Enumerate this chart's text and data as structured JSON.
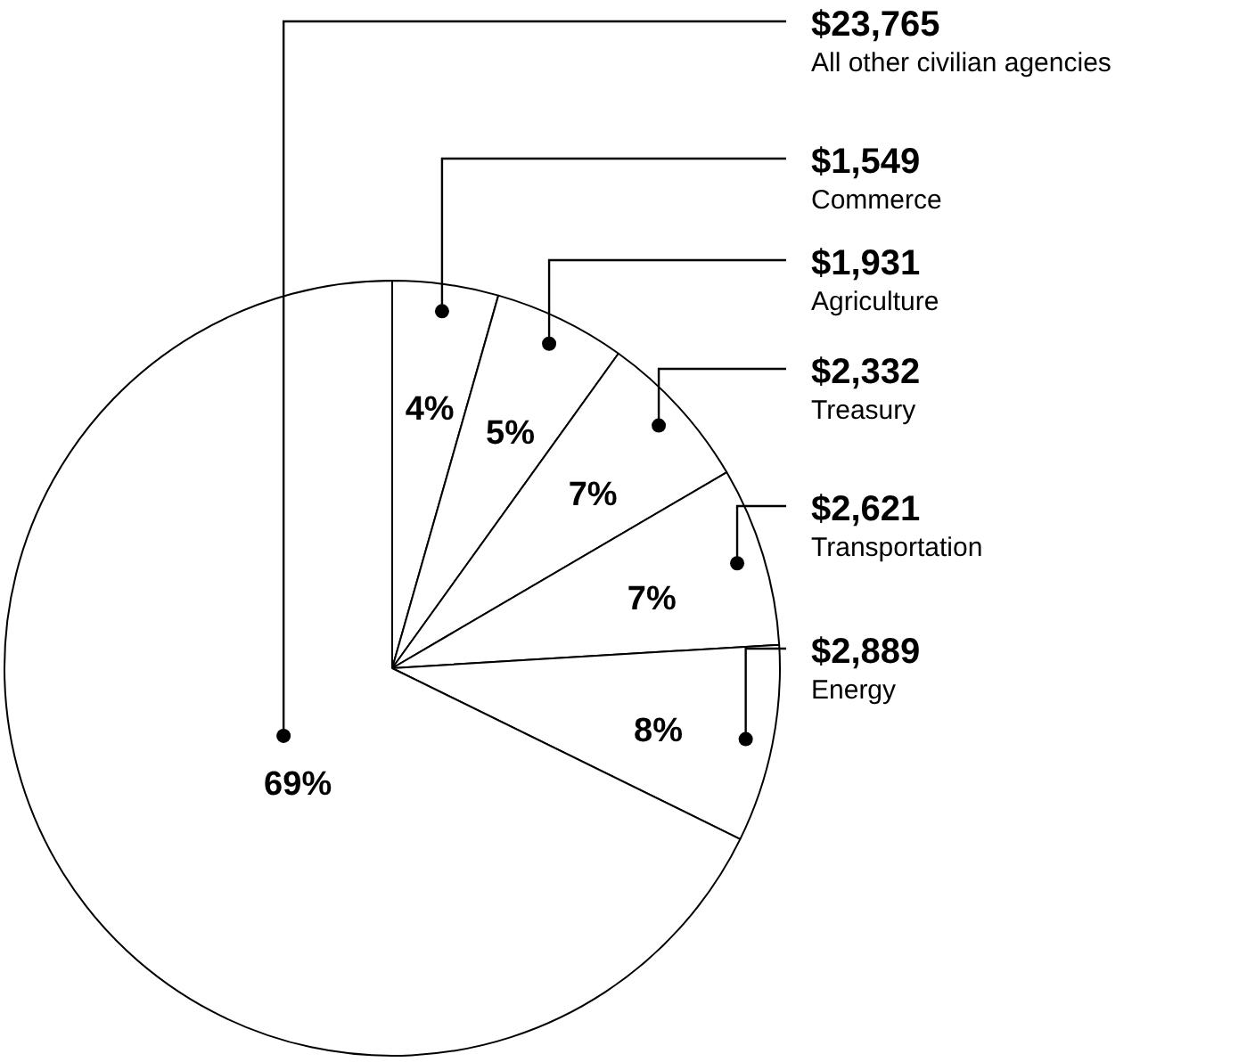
{
  "chart_data": {
    "type": "pie",
    "categories": [
      "Commerce",
      "Agriculture",
      "Treasury",
      "Transportation",
      "Energy",
      "All other civilian agencies"
    ],
    "values": [
      1549,
      1931,
      2332,
      2621,
      2889,
      23765
    ],
    "value_labels": [
      "$1,549",
      "$1,931",
      "$2,332",
      "$2,621",
      "$2,889",
      "$23,765"
    ],
    "colors": [
      "#ffffff",
      "#ffffff",
      "#ffffff",
      "#ffffff",
      "#ffffff",
      "#ffffff"
    ],
    "annotations": [
      {
        "text": "4%",
        "x": "Commerce"
      },
      {
        "text": "5%",
        "x": "Agriculture"
      },
      {
        "text": "7%",
        "x": "Treasury"
      },
      {
        "text": "7%",
        "x": "Transportation"
      },
      {
        "text": "8%",
        "x": "Energy"
      },
      {
        "text": "69%",
        "x": "All other civilian agencies"
      }
    ],
    "legend": false
  }
}
